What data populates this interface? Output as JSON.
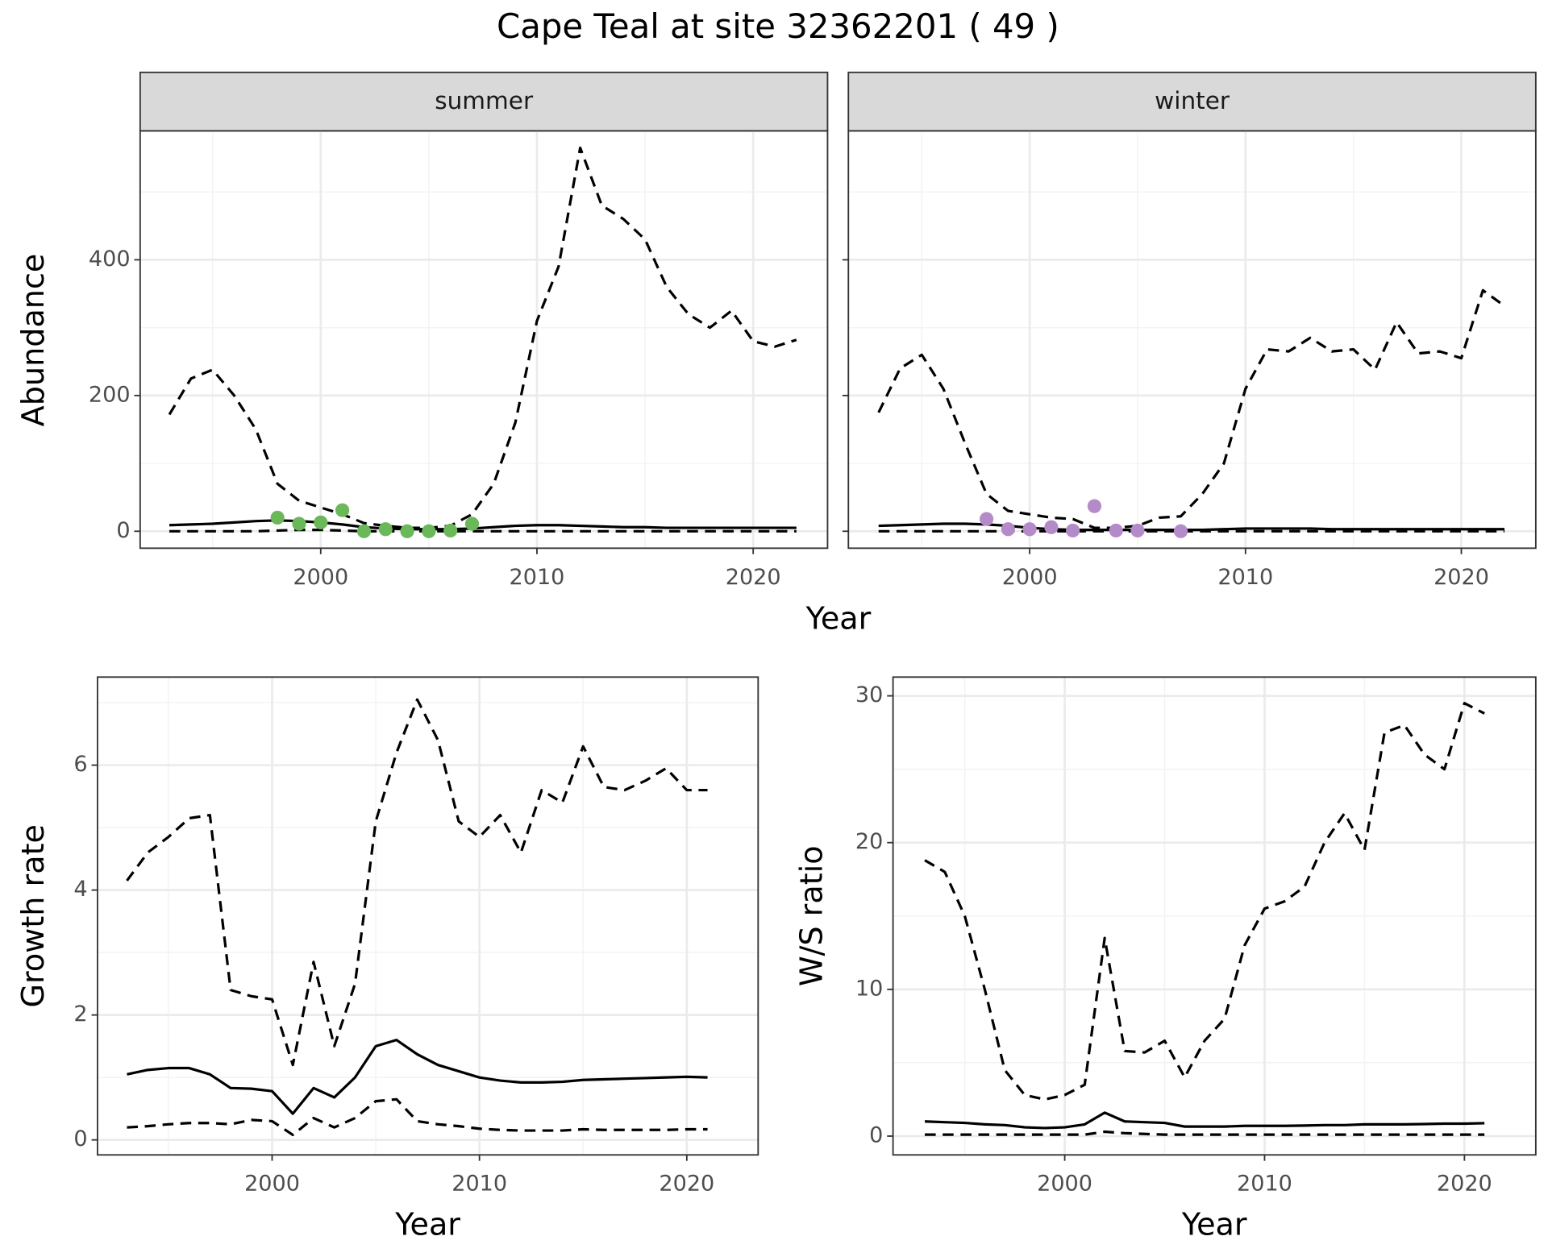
{
  "title": "Cape Teal at site 32362201 ( 49 )",
  "facet_xlabel": "Year",
  "facet_ylabel": "Abundance",
  "chart_data": [
    {
      "type": "line",
      "strip": "summer",
      "x": [
        1993,
        1994,
        1995,
        1996,
        1997,
        1998,
        1999,
        2000,
        2001,
        2002,
        2003,
        2004,
        2005,
        2006,
        2007,
        2008,
        2009,
        2010,
        2011,
        2012,
        2013,
        2014,
        2015,
        2016,
        2017,
        2018,
        2019,
        2020,
        2021,
        2022
      ],
      "xlim": [
        1991.65,
        2023.44
      ],
      "xticks": [
        2000,
        2010,
        2020
      ],
      "xminor": [
        1995,
        2005,
        2015
      ],
      "ylim": [
        -25,
        590
      ],
      "yticks": [
        0,
        200,
        400
      ],
      "yminor": [
        100,
        300,
        500
      ],
      "show_yticklabels": true,
      "grid": true,
      "series": [
        {
          "color": "#000000",
          "dashed": true,
          "values": [
            172,
            225,
            238,
            200,
            150,
            70,
            45,
            35,
            25,
            12,
            8,
            5,
            5,
            8,
            25,
            70,
            160,
            310,
            390,
            565,
            480,
            460,
            430,
            360,
            320,
            300,
            325,
            280,
            272,
            282
          ]
        },
        {
          "color": "#000000",
          "dashed": false,
          "values": [
            9,
            10,
            11,
            13,
            15,
            16,
            15,
            13,
            10,
            6,
            4,
            3,
            3,
            3,
            4,
            6,
            8,
            9,
            9,
            8,
            7,
            6,
            6,
            5,
            5,
            5,
            5,
            5,
            5,
            5
          ]
        },
        {
          "color": "#000000",
          "dashed": true,
          "values": [
            0,
            0,
            0,
            0,
            0,
            1,
            2,
            2,
            1,
            0,
            0,
            0,
            0,
            0,
            0,
            0,
            0,
            0,
            0,
            0,
            0,
            0,
            0,
            0,
            0,
            0,
            0,
            0,
            0,
            0
          ]
        },
        {
          "color": "#6ab85a",
          "marker": "point",
          "values": [
            null,
            null,
            null,
            null,
            null,
            20,
            11,
            13,
            31,
            0,
            3,
            0,
            0,
            1,
            11,
            null,
            null,
            null,
            null,
            null,
            null,
            null,
            null,
            null,
            null,
            null,
            null,
            null,
            null,
            null
          ]
        }
      ]
    },
    {
      "type": "line",
      "strip": "winter",
      "x": [
        1993,
        1994,
        1995,
        1996,
        1997,
        1998,
        1999,
        2000,
        2001,
        2002,
        2003,
        2004,
        2005,
        2006,
        2007,
        2008,
        2009,
        2010,
        2011,
        2012,
        2013,
        2014,
        2015,
        2016,
        2017,
        2018,
        2019,
        2020,
        2021,
        2022
      ],
      "xlim": [
        1991.6,
        2023.45
      ],
      "xticks": [
        2000,
        2010,
        2020
      ],
      "xminor": [
        1995,
        2005,
        2015
      ],
      "ylim": [
        -25,
        590
      ],
      "yticks": [
        0,
        200,
        400
      ],
      "yminor": [
        100,
        300,
        500
      ],
      "show_yticklabels": false,
      "grid": true,
      "series": [
        {
          "color": "#000000",
          "dashed": true,
          "values": [
            175,
            240,
            260,
            210,
            130,
            55,
            30,
            25,
            20,
            18,
            5,
            5,
            8,
            20,
            22,
            55,
            100,
            210,
            268,
            265,
            285,
            265,
            268,
            238,
            308,
            262,
            265,
            255,
            355,
            332
          ]
        },
        {
          "color": "#000000",
          "dashed": false,
          "values": [
            8,
            9,
            10,
            11,
            11,
            10,
            8,
            5,
            3,
            2,
            2,
            2,
            2,
            2,
            2,
            2,
            3,
            4,
            4,
            4,
            4,
            3,
            3,
            3,
            3,
            3,
            3,
            3,
            3,
            3
          ]
        },
        {
          "color": "#000000",
          "dashed": true,
          "values": [
            0,
            0,
            0,
            0,
            0,
            0,
            0,
            0,
            0,
            0,
            0,
            0,
            0,
            0,
            0,
            0,
            0,
            0,
            0,
            0,
            0,
            0,
            0,
            0,
            0,
            0,
            0,
            0,
            0,
            0
          ]
        },
        {
          "color": "#b48bc8",
          "marker": "point",
          "values": [
            null,
            null,
            null,
            null,
            null,
            18,
            3,
            3,
            6,
            1,
            37,
            1,
            1,
            null,
            0,
            null,
            null,
            null,
            null,
            null,
            null,
            null,
            null,
            null,
            null,
            null,
            null,
            null,
            null,
            null
          ]
        }
      ]
    },
    {
      "type": "line",
      "xlabel": "Year",
      "ylabel": "Growth rate",
      "x": [
        1993,
        1994,
        1995,
        1996,
        1997,
        1998,
        1999,
        2000,
        2001,
        2002,
        2003,
        2004,
        2005,
        2006,
        2007,
        2008,
        2009,
        2010,
        2011,
        2012,
        2013,
        2014,
        2015,
        2016,
        2017,
        2018,
        2019,
        2020,
        2021
      ],
      "xlim": [
        1991.58,
        2023.44
      ],
      "xticks": [
        2000,
        2010,
        2020
      ],
      "xminor": [
        1995,
        2005,
        2015
      ],
      "ylim": [
        -0.24,
        7.41
      ],
      "yticks": [
        0,
        2,
        4,
        6
      ],
      "yminor": [
        1,
        3,
        5,
        7
      ],
      "show_yticklabels": true,
      "grid": true,
      "series": [
        {
          "color": "#000000",
          "dashed": true,
          "values": [
            4.15,
            4.6,
            4.85,
            5.15,
            5.2,
            2.4,
            2.3,
            2.25,
            1.2,
            2.85,
            1.5,
            2.5,
            5.1,
            6.2,
            7.05,
            6.4,
            5.1,
            4.85,
            5.2,
            4.6,
            5.6,
            5.4,
            6.3,
            5.65,
            5.6,
            5.75,
            5.95,
            5.6,
            5.6
          ]
        },
        {
          "color": "#000000",
          "dashed": false,
          "values": [
            1.05,
            1.12,
            1.15,
            1.15,
            1.05,
            0.83,
            0.82,
            0.78,
            0.42,
            0.83,
            0.68,
            1.0,
            1.5,
            1.6,
            1.37,
            1.2,
            1.1,
            1.0,
            0.95,
            0.92,
            0.92,
            0.93,
            0.96,
            0.97,
            0.98,
            0.99,
            1.0,
            1.01,
            1.0
          ]
        },
        {
          "color": "#000000",
          "dashed": true,
          "values": [
            0.2,
            0.22,
            0.25,
            0.27,
            0.27,
            0.25,
            0.32,
            0.3,
            0.08,
            0.35,
            0.2,
            0.35,
            0.62,
            0.65,
            0.3,
            0.25,
            0.22,
            0.18,
            0.16,
            0.15,
            0.15,
            0.15,
            0.17,
            0.16,
            0.16,
            0.16,
            0.16,
            0.17,
            0.17
          ]
        }
      ]
    },
    {
      "type": "line",
      "xlabel": "Year",
      "ylabel": "W/S ratio",
      "x": [
        1993,
        1994,
        1995,
        1996,
        1997,
        1998,
        1999,
        2000,
        2001,
        2002,
        2003,
        2004,
        2005,
        2006,
        2007,
        2008,
        2009,
        2010,
        2011,
        2012,
        2013,
        2014,
        2015,
        2016,
        2017,
        2018,
        2019,
        2020,
        2021
      ],
      "xlim": [
        1991.41,
        2023.57
      ],
      "xticks": [
        2000,
        2010,
        2020
      ],
      "xminor": [
        1995,
        2005,
        2015
      ],
      "ylim": [
        -1.28,
        31.28
      ],
      "yticks": [
        0,
        10,
        20,
        30
      ],
      "yminor": [
        5,
        15,
        25
      ],
      "show_yticklabels": true,
      "grid": true,
      "series": [
        {
          "color": "#000000",
          "dashed": true,
          "values": [
            18.8,
            18,
            15,
            10,
            4.5,
            2.8,
            2.5,
            2.8,
            3.5,
            13.5,
            5.8,
            5.7,
            6.5,
            4,
            6.5,
            8,
            13,
            15.5,
            16,
            17,
            20,
            22,
            19.5,
            27.5,
            28,
            26,
            25,
            29.5,
            28.8
          ]
        },
        {
          "color": "#000000",
          "dashed": false,
          "values": [
            1,
            0.95,
            0.9,
            0.8,
            0.75,
            0.6,
            0.55,
            0.6,
            0.8,
            1.6,
            1,
            0.95,
            0.9,
            0.65,
            0.65,
            0.65,
            0.7,
            0.7,
            0.7,
            0.72,
            0.75,
            0.75,
            0.8,
            0.8,
            0.8,
            0.82,
            0.85,
            0.85,
            0.88
          ]
        },
        {
          "color": "#000000",
          "dashed": true,
          "values": [
            0.1,
            0.1,
            0.1,
            0.1,
            0.1,
            0.1,
            0.1,
            0.1,
            0.1,
            0.3,
            0.2,
            0.15,
            0.1,
            0.1,
            0.1,
            0.1,
            0.1,
            0.1,
            0.1,
            0.1,
            0.1,
            0.1,
            0.1,
            0.1,
            0.1,
            0.1,
            0.1,
            0.1,
            0.1
          ]
        }
      ]
    }
  ]
}
